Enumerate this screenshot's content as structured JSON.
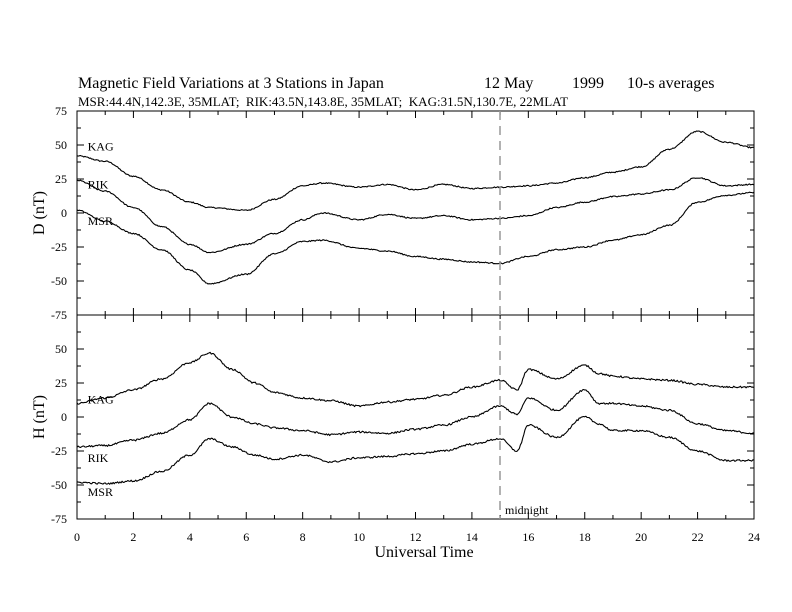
{
  "figure": {
    "title_left": "Magnetic Field Variations at 3 Stations in Japan",
    "title_date_day": "12 May",
    "title_date_year": "1999",
    "title_right": "10-s averages",
    "subtitle": "MSR:44.4N,142.3E, 35MLAT;  RIK:43.5N,143.8E, 35MLAT;  KAG:31.5N,130.7E, 22MLAT",
    "xlabel": "Universal Time",
    "midnight_label": "midnight"
  },
  "chart_data": [
    {
      "type": "line",
      "panel": "D",
      "ylabel": "D (nT)",
      "xlim": [
        0,
        24
      ],
      "ylim": [
        -75,
        75
      ],
      "x_ticks": [
        0,
        2,
        4,
        6,
        8,
        10,
        12,
        14,
        16,
        18,
        20,
        22,
        24
      ],
      "y_ticks": [
        -75,
        -50,
        -25,
        0,
        25,
        50,
        75
      ],
      "x": [
        0,
        1,
        2,
        3,
        4,
        4.7,
        6,
        7,
        8,
        8.7,
        10,
        11,
        12,
        13,
        14,
        15,
        16,
        17,
        18,
        19,
        20,
        21,
        22,
        23,
        24
      ],
      "series": [
        {
          "name": "KAG",
          "label_at": [
            0.2,
            46
          ],
          "values": [
            42,
            38,
            27,
            17,
            8,
            4,
            2,
            10,
            20,
            22,
            19,
            21,
            17,
            21,
            18,
            19,
            20,
            22,
            26,
            30,
            34,
            47,
            60,
            52,
            48
          ]
        },
        {
          "name": "RIK",
          "label_at": [
            0.2,
            18
          ],
          "values": [
            24,
            16,
            4,
            -10,
            -23,
            -29,
            -23,
            -15,
            -5,
            0,
            -5,
            -1,
            -4,
            -2,
            -5,
            -4,
            -2,
            4,
            8,
            12,
            14,
            17,
            26,
            20,
            21
          ]
        },
        {
          "name": "MSR",
          "label_at": [
            0.2,
            -9
          ],
          "values": [
            2,
            -6,
            -15,
            -27,
            -42,
            -52,
            -45,
            -30,
            -21,
            -20,
            -26,
            -28,
            -32,
            -34,
            -36,
            -37,
            -32,
            -27,
            -25,
            -20,
            -16,
            -9,
            8,
            13,
            15
          ]
        }
      ]
    },
    {
      "type": "line",
      "panel": "H",
      "ylabel": "H (nT)",
      "xlim": [
        0,
        24
      ],
      "ylim": [
        -75,
        75
      ],
      "x_ticks": [
        0,
        2,
        4,
        6,
        8,
        10,
        12,
        14,
        16,
        18,
        20,
        22,
        24
      ],
      "y_ticks": [
        -75,
        -50,
        -25,
        0,
        25,
        50,
        75
      ],
      "x": [
        0,
        1,
        2,
        3,
        4,
        4.7,
        5.5,
        6.3,
        7,
        8,
        9,
        10,
        11,
        12,
        13,
        14,
        15,
        15.6,
        16,
        17,
        18,
        18.5,
        19,
        20,
        21,
        22,
        23,
        24
      ],
      "series": [
        {
          "name": "KAG",
          "label_at": [
            0.2,
            10
          ],
          "values": [
            10,
            14,
            20,
            28,
            40,
            47,
            35,
            25,
            18,
            14,
            12,
            8,
            11,
            13,
            16,
            22,
            27,
            20,
            35,
            28,
            38,
            32,
            30,
            28,
            27,
            24,
            22,
            22
          ]
        },
        {
          "name": "RIK",
          "label_at": [
            0.2,
            -33
          ],
          "values": [
            -22,
            -21,
            -17,
            -12,
            -2,
            10,
            0,
            -5,
            -8,
            -10,
            -13,
            -11,
            -12,
            -9,
            -6,
            0,
            8,
            2,
            14,
            5,
            20,
            10,
            10,
            8,
            5,
            -5,
            -10,
            -12
          ]
        },
        {
          "name": "MSR",
          "label_at": [
            0.2,
            -58
          ],
          "values": [
            -48,
            -49,
            -47,
            -40,
            -28,
            -16,
            -22,
            -28,
            -31,
            -28,
            -33,
            -30,
            -29,
            -27,
            -25,
            -20,
            -16,
            -25,
            -6,
            -15,
            0,
            -5,
            -10,
            -10,
            -15,
            -25,
            -32,
            -32
          ]
        }
      ]
    }
  ]
}
